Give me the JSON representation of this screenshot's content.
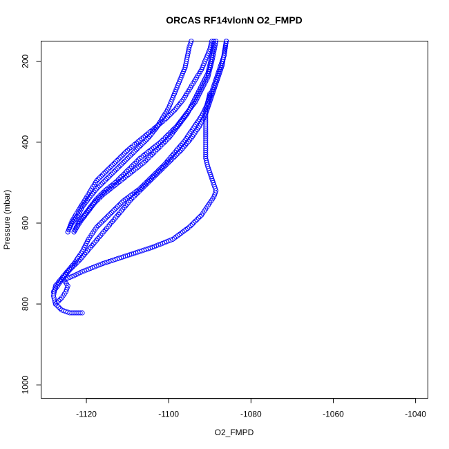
{
  "chart_data": {
    "type": "scatter",
    "title": "ORCAS RF14vlonN O2_FMPD",
    "xlabel": "O2_FMPD",
    "ylabel": "Pressure (mbar)",
    "xlim": [
      -1131,
      -1037
    ],
    "ylim": [
      1033,
      150
    ],
    "y_reversed": true,
    "grid": false,
    "marker": "open-circle",
    "color": "#0000ff",
    "x_ticks": [
      -1120,
      -1100,
      -1080,
      -1060,
      -1040
    ],
    "x_tick_labels": [
      "-1120",
      "-1100",
      "-1080",
      "-1060",
      "-1040"
    ],
    "y_ticks": [
      200,
      400,
      600,
      800,
      1000
    ],
    "y_tick_labels": [
      "200",
      "400",
      "600",
      "800",
      "1000"
    ],
    "series": [
      {
        "segments": [
          [
            [
              -1121,
              822
            ],
            [
              -1124,
              822
            ],
            [
              -1126,
              815
            ],
            [
              -1127.5,
              800
            ],
            [
              -1128,
              780
            ],
            [
              -1127.5,
              755
            ],
            [
              -1125.5,
              730
            ],
            [
              -1123,
              700
            ],
            [
              -1121,
              670
            ],
            [
              -1119.5,
              640
            ],
            [
              -1118.5,
              625
            ],
            [
              -1117.5,
              610
            ],
            [
              -1116,
              595
            ],
            [
              -1113.5,
              570
            ],
            [
              -1111,
              545
            ],
            [
              -1107,
              515
            ],
            [
              -1104,
              485
            ],
            [
              -1101,
              455
            ],
            [
              -1098.5,
              425
            ],
            [
              -1096,
              395
            ],
            [
              -1094,
              365
            ],
            [
              -1092,
              335
            ],
            [
              -1090.5,
              305
            ],
            [
              -1089.5,
              275
            ],
            [
              -1088.5,
              245
            ],
            [
              -1087.5,
              215
            ],
            [
              -1086.5,
              185
            ],
            [
              -1086,
              150
            ]
          ],
          [
            [
              -1128,
              770
            ],
            [
              -1126,
              740
            ],
            [
              -1124,
              715
            ],
            [
              -1121.5,
              690
            ],
            [
              -1119,
              660
            ],
            [
              -1116.5,
              630
            ],
            [
              -1114,
              600
            ],
            [
              -1111.5,
              570
            ],
            [
              -1109,
              540
            ],
            [
              -1106,
              510
            ],
            [
              -1103,
              480
            ],
            [
              -1100,
              450
            ],
            [
              -1097,
              420
            ],
            [
              -1094.5,
              390
            ],
            [
              -1092.5,
              360
            ],
            [
              -1091,
              330
            ],
            [
              -1090,
              300
            ],
            [
              -1089,
              270
            ],
            [
              -1088,
              240
            ],
            [
              -1087,
              210
            ],
            [
              -1086.5,
              180
            ],
            [
              -1086,
              150
            ]
          ],
          [
            [
              -1124.5,
              622
            ],
            [
              -1123.5,
              595
            ],
            [
              -1122,
              570
            ],
            [
              -1120.5,
              545
            ],
            [
              -1119,
              520
            ],
            [
              -1117.5,
              495
            ],
            [
              -1115,
              470
            ],
            [
              -1112.5,
              445
            ],
            [
              -1110,
              420
            ],
            [
              -1107,
              395
            ],
            [
              -1104,
              370
            ],
            [
              -1101,
              345
            ],
            [
              -1098.5,
              320
            ],
            [
              -1096.5,
              295
            ],
            [
              -1095,
              270
            ],
            [
              -1093.5,
              245
            ],
            [
              -1092,
              220
            ],
            [
              -1091,
              195
            ],
            [
              -1090,
              170
            ],
            [
              -1089.5,
              150
            ]
          ],
          [
            [
              -1124.5,
              622
            ],
            [
              -1123.5,
              600
            ],
            [
              -1122,
              580
            ],
            [
              -1121,
              560
            ],
            [
              -1119.5,
              540
            ],
            [
              -1117.5,
              515
            ],
            [
              -1115,
              490
            ],
            [
              -1112.5,
              465
            ],
            [
              -1110,
              440
            ],
            [
              -1107.5,
              415
            ],
            [
              -1105,
              390
            ],
            [
              -1103,
              365
            ],
            [
              -1101.5,
              340
            ],
            [
              -1100,
              315
            ],
            [
              -1099,
              290
            ],
            [
              -1098,
              265
            ],
            [
              -1097,
              240
            ],
            [
              -1096,
              215
            ],
            [
              -1095.5,
              190
            ],
            [
              -1095,
              165
            ],
            [
              -1094.5,
              150
            ]
          ],
          [
            [
              -1123,
              622
            ],
            [
              -1122,
              600
            ],
            [
              -1120.5,
              580
            ],
            [
              -1119,
              560
            ],
            [
              -1117.5,
              540
            ],
            [
              -1115.5,
              520
            ],
            [
              -1113,
              500
            ],
            [
              -1111,
              480
            ],
            [
              -1109,
              460
            ],
            [
              -1107,
              440
            ],
            [
              -1104.5,
              420
            ],
            [
              -1102,
              400
            ],
            [
              -1100,
              380
            ],
            [
              -1098,
              360
            ],
            [
              -1096.5,
              340
            ],
            [
              -1095,
              320
            ],
            [
              -1093.5,
              300
            ],
            [
              -1092.5,
              280
            ],
            [
              -1091.5,
              260
            ],
            [
              -1090.5,
              240
            ],
            [
              -1090,
              220
            ],
            [
              -1089.5,
              200
            ],
            [
              -1089,
              175
            ],
            [
              -1088.5,
              150
            ]
          ],
          [
            [
              -1123,
              622
            ],
            [
              -1122,
              605
            ],
            [
              -1121,
              590
            ],
            [
              -1119.5,
              570
            ],
            [
              -1118,
              550
            ],
            [
              -1116,
              530
            ],
            [
              -1113.5,
              510
            ],
            [
              -1111,
              490
            ],
            [
              -1108.5,
              470
            ],
            [
              -1106,
              450
            ],
            [
              -1104,
              430
            ],
            [
              -1102,
              410
            ],
            [
              -1100,
              390
            ],
            [
              -1098.5,
              370
            ],
            [
              -1097,
              350
            ],
            [
              -1095.5,
              330
            ],
            [
              -1094.5,
              310
            ],
            [
              -1093.5,
              290
            ],
            [
              -1092.5,
              270
            ],
            [
              -1091.5,
              250
            ],
            [
              -1090.5,
              230
            ],
            [
              -1090,
              210
            ],
            [
              -1089.5,
              185
            ],
            [
              -1089,
              150
            ]
          ],
          [
            [
              -1127.5,
              800
            ],
            [
              -1126,
              785
            ],
            [
              -1125,
              770
            ],
            [
              -1124.5,
              755
            ],
            [
              -1125.5,
              740
            ],
            [
              -1123,
              730
            ],
            [
              -1121,
              720
            ],
            [
              -1118.5,
              710
            ],
            [
              -1116,
              700
            ],
            [
              -1113,
              690
            ],
            [
              -1110,
              680
            ],
            [
              -1107,
              670
            ],
            [
              -1104,
              660
            ],
            [
              -1101.5,
              650
            ],
            [
              -1099,
              640
            ],
            [
              -1097,
              625
            ],
            [
              -1095,
              610
            ],
            [
              -1093.5,
              595
            ],
            [
              -1092,
              580
            ],
            [
              -1091,
              565
            ],
            [
              -1090,
              550
            ],
            [
              -1089,
              535
            ],
            [
              -1088.5,
              520
            ],
            [
              -1089,
              505
            ],
            [
              -1089.5,
              490
            ],
            [
              -1090,
              475
            ],
            [
              -1090.5,
              460
            ],
            [
              -1091,
              440
            ],
            [
              -1091,
              420
            ],
            [
              -1091,
              400
            ],
            [
              -1091,
              380
            ],
            [
              -1091,
              360
            ],
            [
              -1091,
              340
            ],
            [
              -1091,
              320
            ],
            [
              -1090.5,
              300
            ],
            [
              -1090,
              280
            ],
            [
              -1090,
              285
            ]
          ]
        ]
      }
    ]
  }
}
